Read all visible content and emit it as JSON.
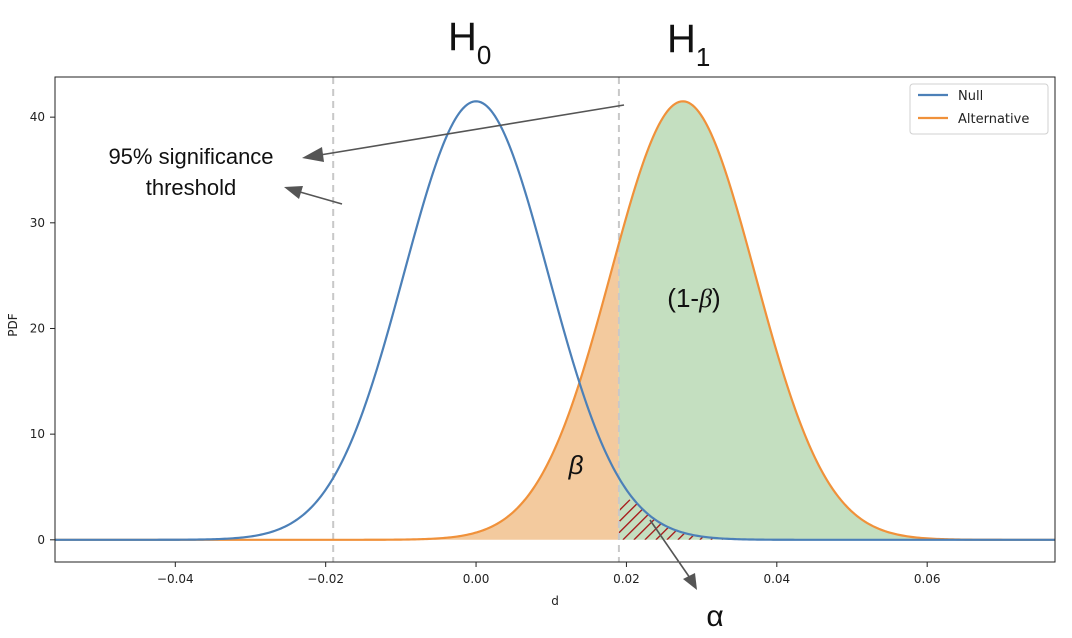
{
  "chart_data": {
    "type": "line",
    "title": "",
    "xlabel": "d",
    "ylabel": "PDF",
    "xlim": [
      -0.056,
      0.077
    ],
    "ylim": [
      -2.1,
      43.8
    ],
    "xticks": [
      -0.04,
      -0.02,
      0.0,
      0.02,
      0.04,
      0.06
    ],
    "xtick_labels": [
      "−0.04",
      "−0.02",
      "0.00",
      "0.02",
      "0.04",
      "0.06"
    ],
    "yticks": [
      0,
      10,
      20,
      30,
      40
    ],
    "ytick_labels": [
      "0",
      "10",
      "20",
      "30",
      "40"
    ],
    "grid": false,
    "legend_position": "top-right",
    "series": [
      {
        "name": "Null",
        "distribution": "normal",
        "mean": 0.0,
        "sd": 0.0096,
        "peak": 41.5,
        "color": "#4c80b8"
      },
      {
        "name": "Alternative",
        "distribution": "normal",
        "mean": 0.0275,
        "sd": 0.0096,
        "peak": 41.5,
        "color": "#f0913a"
      }
    ],
    "threshold_lines": [
      -0.019,
      0.019
    ],
    "threshold_color": "#c8c8c8",
    "fill_colors": {
      "beta": "#f3ca9e",
      "power": "#c4dfc0",
      "alpha_hatch": "#a81e1e"
    }
  },
  "annotations": {
    "h0": {
      "main": "H",
      "sub": "0"
    },
    "h1": {
      "main": "H",
      "sub": "1"
    },
    "threshold_line1": "95% significance",
    "threshold_line2": "threshold",
    "beta": "β",
    "power_prefix": "(1-",
    "power_beta": "β",
    "power_suffix": ")",
    "alpha": "α"
  }
}
